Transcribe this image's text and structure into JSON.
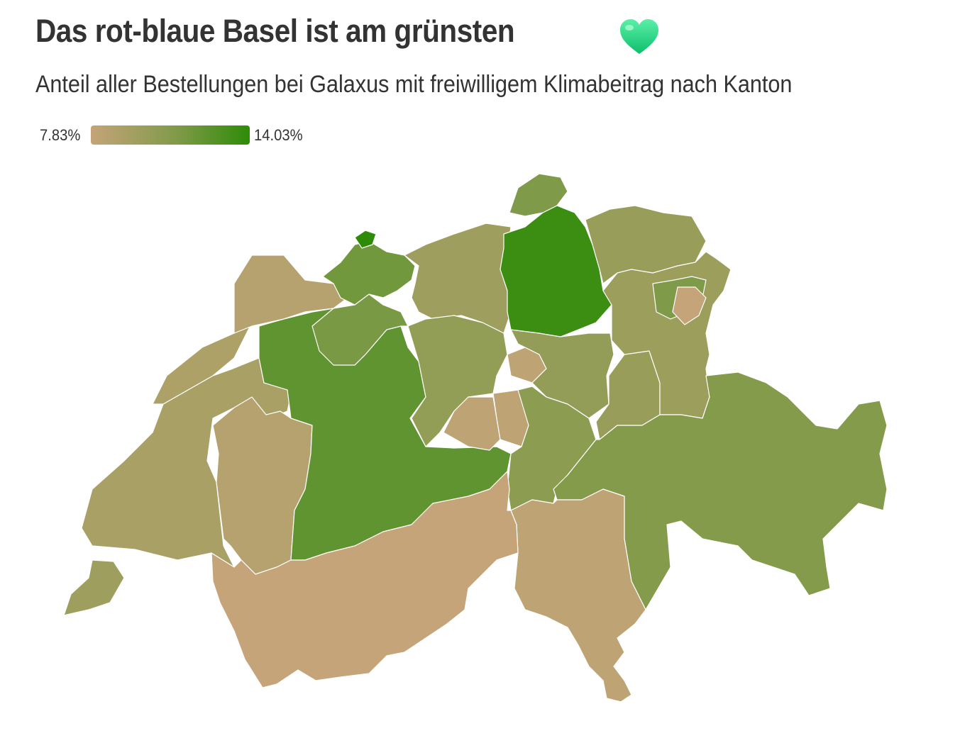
{
  "header": {
    "title": "Das rot-blaue Basel ist am grünsten",
    "subtitle": "Anteil aller Bestellungen bei Galaxus mit freiwilligem Klimabeitrag nach Kanton"
  },
  "heart_icon": "green-heart",
  "legend": {
    "min_label": "7.83%",
    "max_label": "14.03%",
    "min_value": 7.83,
    "max_value": 14.03,
    "color_low": "#c4a478",
    "color_high": "#2e8b08"
  },
  "map": {
    "shade_scale": "fraction 0 (lowest share) to 1 (highest share), estimated from fill colour",
    "cantons": {
      "BS": 1.0,
      "ZH": 0.92,
      "BE": 0.72,
      "BL": 0.62,
      "SO": 0.58,
      "GR": 0.52,
      "SH": 0.55,
      "AR": 0.55,
      "UR": 0.45,
      "LU": 0.4,
      "SZ": 0.38,
      "TG": 0.35,
      "SG": 0.32,
      "AG": 0.3,
      "GL": 0.35,
      "FR": 0.12,
      "JU": 0.12,
      "VD": 0.22,
      "GE": 0.3,
      "NE": 0.18,
      "OW": 0.05,
      "NW": 0.05,
      "ZG": 0.05,
      "AI": 0.0,
      "VS": 0.0,
      "TI": 0.05
    }
  }
}
